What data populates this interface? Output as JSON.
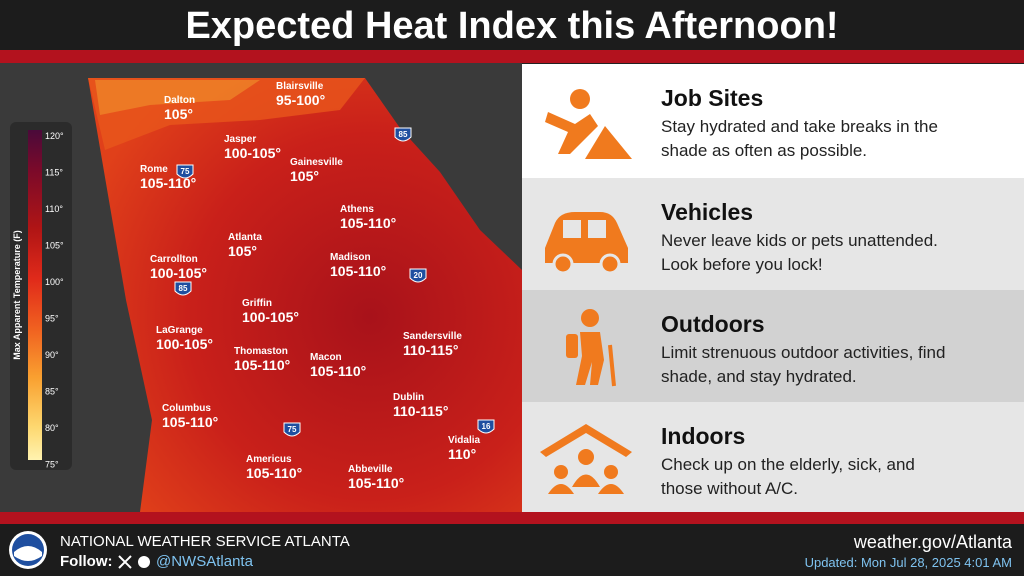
{
  "header": {
    "title": "Expected Heat Index this Afternoon!"
  },
  "legend": {
    "title": "Max Apparent Temperature (F)",
    "ticks": [
      "120°",
      "115°",
      "110°",
      "105°",
      "100°",
      "95°",
      "90°",
      "85°",
      "80°",
      "75°"
    ]
  },
  "cities": [
    {
      "name": "Blairsville",
      "value": "95-100°"
    },
    {
      "name": "Dalton",
      "value": "105°"
    },
    {
      "name": "Jasper",
      "value": "100-105°"
    },
    {
      "name": "Gainesville",
      "value": "105°"
    },
    {
      "name": "Rome",
      "value": "105-110°"
    },
    {
      "name": "Athens",
      "value": "105-110°"
    },
    {
      "name": "Atlanta",
      "value": "105°"
    },
    {
      "name": "Carrollton",
      "value": "100-105°"
    },
    {
      "name": "Madison",
      "value": "105-110°"
    },
    {
      "name": "Griffin",
      "value": "100-105°"
    },
    {
      "name": "LaGrange",
      "value": "100-105°"
    },
    {
      "name": "Thomaston",
      "value": "105-110°"
    },
    {
      "name": "Macon",
      "value": "105-110°"
    },
    {
      "name": "Sandersville",
      "value": "110-115°"
    },
    {
      "name": "Dublin",
      "value": "110-115°"
    },
    {
      "name": "Columbus",
      "value": "105-110°"
    },
    {
      "name": "Americus",
      "value": "105-110°"
    },
    {
      "name": "Vidalia",
      "value": "110°"
    },
    {
      "name": "Abbeville",
      "value": "105-110°"
    }
  ],
  "highways": [
    "85",
    "75",
    "85",
    "20",
    "75",
    "16"
  ],
  "tips": [
    {
      "heading": "Job Sites",
      "lines": [
        "Stay hydrated and take breaks in the",
        "shade as often as possible."
      ]
    },
    {
      "heading": "Vehicles",
      "lines": [
        "Never leave kids or pets unattended.",
        "Look before you lock!"
      ]
    },
    {
      "heading": "Outdoors",
      "lines": [
        "Limit strenuous outdoor activities, find",
        "shade, and stay hydrated."
      ]
    },
    {
      "heading": "Indoors",
      "lines": [
        "Check up on the elderly, sick, and",
        "those without A/C."
      ]
    }
  ],
  "footer": {
    "office": "NATIONAL WEATHER SERVICE ATLANTA",
    "follow": "Follow:",
    "handle": "@NWSAtlanta",
    "website": "weather.gov/Atlanta",
    "updated": "Updated: Mon Jul 28, 2025 4:01 AM"
  }
}
